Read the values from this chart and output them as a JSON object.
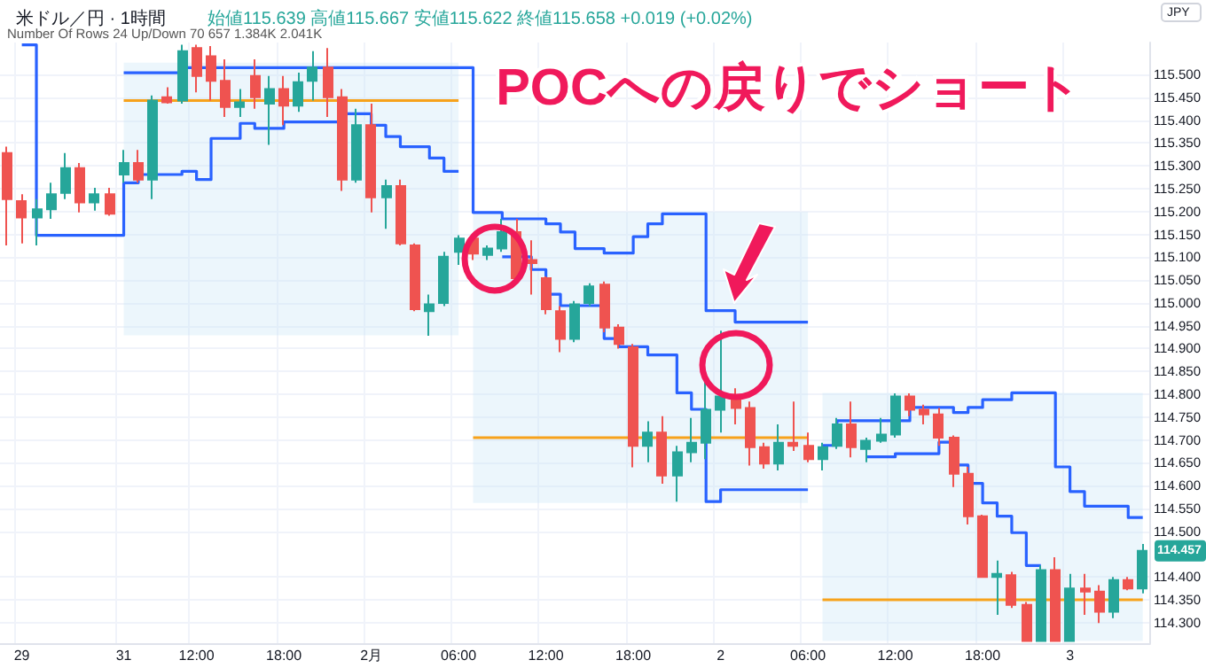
{
  "chart_data": {
    "type": "candlestick",
    "title": "米ドル／円 · 1時間",
    "subtitle": "始値115.639 高値115.667 安値115.622 終値115.658 +0.019 (+0.02%)",
    "annotations": [
      "POCへの戻りでショート",
      "Number Of Rows 24 Up/Down 70 657 1.384K 2.041K",
      "JPY",
      {
        "text": "114.457",
        "y": 114.457
      }
    ],
    "categories": [
      null,
      "29",
      null,
      null,
      null,
      null,
      null,
      null,
      "31",
      null,
      null,
      null,
      null,
      "12:00",
      null,
      null,
      null,
      null,
      null,
      "18:00",
      null,
      null,
      null,
      null,
      null,
      "2月",
      null,
      null,
      null,
      null,
      null,
      "06:00",
      null,
      null,
      null,
      null,
      null,
      "12:00",
      null,
      null,
      null,
      null,
      null,
      "18:00",
      null,
      null,
      null,
      null,
      null,
      "2",
      null,
      null,
      null,
      null,
      null,
      "06:00",
      null,
      null,
      null,
      null,
      null,
      "12:00",
      null,
      null,
      null,
      null,
      null,
      "18:00",
      null,
      null,
      null,
      null,
      null,
      "3",
      null,
      null,
      null,
      null,
      null
    ],
    "ohlc": [
      [
        115.328,
        115.342,
        115.126,
        115.227
      ],
      [
        115.223,
        115.238,
        115.13,
        115.187
      ],
      [
        115.187,
        115.227,
        115.126,
        115.205
      ],
      [
        115.205,
        115.263,
        115.184,
        115.238
      ],
      [
        115.241,
        115.328,
        115.227,
        115.295
      ],
      [
        115.295,
        115.306,
        115.198,
        115.22
      ],
      [
        115.22,
        115.252,
        115.202,
        115.238
      ],
      [
        115.238,
        115.252,
        115.191,
        115.195
      ],
      [
        115.281,
        115.335,
        115.263,
        115.306
      ],
      [
        115.306,
        115.335,
        115.263,
        115.27
      ],
      [
        115.27,
        115.454,
        115.227,
        115.443
      ],
      [
        115.45,
        115.472,
        115.436,
        115.439
      ],
      [
        115.443,
        115.565,
        115.436,
        115.551
      ],
      [
        115.558,
        115.565,
        115.461,
        115.497
      ],
      [
        115.54,
        115.562,
        115.443,
        115.486
      ],
      [
        115.486,
        115.533,
        115.407,
        115.429
      ],
      [
        115.429,
        115.468,
        115.407,
        115.439
      ],
      [
        115.497,
        115.533,
        115.425,
        115.45
      ],
      [
        115.436,
        115.497,
        115.346,
        115.468
      ],
      [
        115.468,
        115.497,
        115.389,
        115.432
      ],
      [
        115.432,
        115.504,
        115.418,
        115.483
      ],
      [
        115.486,
        115.551,
        115.443,
        115.515
      ],
      [
        115.515,
        115.558,
        115.407,
        115.45
      ],
      [
        115.45,
        115.468,
        115.245,
        115.27
      ],
      [
        115.27,
        115.425,
        115.263,
        115.389
      ],
      [
        115.389,
        115.436,
        115.198,
        115.231
      ],
      [
        115.231,
        115.27,
        115.162,
        115.256
      ],
      [
        115.256,
        115.27,
        115.126,
        115.13
      ],
      [
        115.126,
        115.13,
        114.982,
        114.986
      ],
      [
        114.982,
        115.018,
        114.928,
        114.997
      ],
      [
        115.0,
        115.112,
        114.993,
        115.101
      ],
      [
        115.112,
        115.148,
        115.083,
        115.141
      ],
      [
        115.141,
        115.144,
        115.094,
        115.108
      ],
      [
        115.105,
        115.126,
        115.094,
        115.119
      ],
      [
        115.119,
        115.184,
        115.112,
        115.155
      ],
      [
        115.155,
        115.184,
        115.047,
        115.054
      ],
      [
        115.094,
        115.137,
        115.018,
        115.087
      ],
      [
        115.054,
        115.058,
        114.975,
        114.986
      ],
      [
        114.982,
        114.993,
        114.892,
        114.921
      ],
      [
        114.921,
        115.004,
        114.914,
        114.997
      ],
      [
        115.0,
        115.043,
        114.993,
        115.036
      ],
      [
        115.04,
        115.047,
        114.936,
        114.946
      ],
      [
        114.946,
        114.953,
        114.9,
        114.91
      ],
      [
        114.903,
        114.91,
        114.64,
        114.687
      ],
      [
        114.687,
        114.741,
        114.651,
        114.716
      ],
      [
        114.716,
        114.752,
        114.604,
        114.622
      ],
      [
        114.622,
        114.687,
        114.565,
        114.673
      ],
      [
        114.673,
        114.748,
        114.651,
        114.694
      ],
      [
        114.694,
        114.831,
        114.658,
        114.766
      ],
      [
        114.766,
        114.939,
        114.716,
        114.795
      ],
      [
        114.795,
        114.813,
        114.734,
        114.77
      ],
      [
        114.77,
        114.784,
        114.644,
        114.684
      ],
      [
        114.684,
        114.694,
        114.637,
        114.648
      ],
      [
        114.648,
        114.734,
        114.633,
        114.694
      ],
      [
        114.694,
        114.784,
        114.676,
        114.687
      ],
      [
        114.687,
        114.716,
        114.651,
        114.658
      ],
      [
        114.658,
        114.694,
        114.633,
        114.684
      ],
      [
        114.687,
        114.748,
        114.68,
        114.734
      ],
      [
        114.734,
        114.784,
        114.662,
        114.684
      ],
      [
        114.68,
        114.705,
        114.651,
        114.698
      ],
      [
        114.698,
        114.748,
        114.694,
        114.712
      ],
      [
        114.712,
        114.802,
        114.705,
        114.795
      ],
      [
        114.795,
        114.802,
        114.752,
        114.766
      ],
      [
        114.766,
        114.777,
        114.734,
        114.756
      ],
      [
        114.756,
        114.77,
        114.687,
        114.705
      ],
      [
        114.705,
        114.71,
        114.597,
        114.626
      ],
      [
        114.626,
        114.641,
        114.515,
        114.533
      ],
      [
        114.533,
        114.536,
        114.398,
        114.4
      ],
      [
        114.4,
        114.436,
        114.317,
        114.407
      ],
      [
        114.404,
        114.411,
        114.332,
        114.339
      ],
      [
        114.339,
        114.345,
        114.26,
        114.26
      ],
      [
        114.26,
        114.425,
        114.26,
        114.415
      ],
      [
        114.415,
        114.443,
        114.26,
        114.26
      ],
      [
        114.26,
        114.407,
        114.26,
        114.375
      ],
      [
        114.375,
        114.407,
        114.317,
        114.368
      ],
      [
        114.368,
        114.382,
        114.299,
        114.324
      ],
      [
        114.324,
        114.4,
        114.31,
        114.393
      ],
      [
        114.393,
        114.4,
        114.371,
        114.375
      ],
      [
        114.375,
        114.472,
        114.364,
        114.457
      ]
    ],
    "colors": [
      "#ef5350",
      "#ef5350",
      "#26a69a",
      "#26a69a",
      "#26a69a",
      "#ef5350",
      "#26a69a",
      "#ef5350",
      "#26a69a",
      "#ef5350",
      "#26a69a",
      "#ef5350",
      "#26a69a",
      "#ef5350",
      "#ef5350",
      "#ef5350",
      "#26a69a",
      "#ef5350",
      "#26a69a",
      "#ef5350",
      "#26a69a",
      "#26a69a",
      "#ef5350",
      "#ef5350",
      "#26a69a",
      "#ef5350",
      "#26a69a",
      "#ef5350",
      "#ef5350",
      "#26a69a",
      "#26a69a",
      "#26a69a",
      "#ef5350",
      "#26a69a",
      "#26a69a",
      "#ef5350",
      "#ef5350",
      "#ef5350",
      "#ef5350",
      "#26a69a",
      "#26a69a",
      "#ef5350",
      "#ef5350",
      "#ef5350",
      "#26a69a",
      "#ef5350",
      "#26a69a",
      "#26a69a",
      "#26a69a",
      "#26a69a",
      "#ef5350",
      "#ef5350",
      "#ef5350",
      "#26a69a",
      "#ef5350",
      "#ef5350",
      "#26a69a",
      "#26a69a",
      "#ef5350",
      "#26a69a",
      "#26a69a",
      "#26a69a",
      "#ef5350",
      "#ef5350",
      "#ef5350",
      "#ef5350",
      "#ef5350",
      "#ef5350",
      "#26a69a",
      "#ef5350",
      "#ef5350",
      "#26a69a",
      "#ef5350",
      "#26a69a",
      "#ef5350",
      "#ef5350",
      "#26a69a",
      "#ef5350",
      "#26a69a"
    ],
    "series": [
      {
        "type": "line",
        "color": "#f7a21b",
        "values": [
          null,
          null,
          null,
          null,
          null,
          null,
          null,
          null,
          115.443,
          115.443,
          115.443,
          115.443,
          115.443,
          115.443,
          115.443,
          115.443,
          115.443,
          115.443,
          115.443,
          115.443,
          115.443,
          115.443,
          115.443,
          115.443,
          115.443,
          115.443,
          115.443,
          115.443,
          115.443,
          115.443,
          115.443,
          115.443,
          null,
          null,
          null,
          null,
          null,
          null,
          null,
          null,
          null,
          null,
          null,
          null,
          null,
          null,
          null,
          null,
          null,
          null,
          null,
          null,
          null,
          null,
          null,
          null,
          null,
          null,
          null,
          null,
          null,
          null,
          null,
          null,
          null,
          null,
          null,
          null,
          null,
          null,
          null,
          null,
          null,
          null,
          null,
          null,
          null,
          null,
          null
        ],
        "lower": [
          null,
          null,
          null,
          null,
          null,
          null,
          null,
          null,
          114.929,
          114.929,
          114.929,
          114.929,
          114.929,
          114.929,
          114.929,
          114.929,
          114.929,
          114.929,
          114.929,
          114.929,
          114.929,
          114.929,
          114.929,
          114.929,
          114.929,
          114.929,
          114.929,
          114.929,
          114.929,
          114.929,
          114.929,
          114.929,
          null,
          null,
          null,
          null,
          null,
          null,
          null,
          null,
          null,
          null,
          null,
          null,
          null,
          null,
          null,
          null,
          null,
          null,
          null,
          null,
          null,
          null,
          null,
          null,
          null,
          null,
          null,
          null,
          null,
          null,
          null,
          null,
          null,
          null,
          null,
          null,
          null,
          null,
          null,
          null,
          null,
          null,
          null,
          null,
          null,
          null,
          null
        ],
        "upper": [
          null,
          null,
          null,
          null,
          null,
          null,
          null,
          null,
          115.526,
          115.526,
          115.526,
          115.526,
          115.526,
          115.526,
          115.526,
          115.526,
          115.526,
          115.526,
          115.526,
          115.526,
          115.526,
          115.526,
          115.526,
          115.526,
          115.526,
          115.526,
          115.526,
          115.526,
          115.526,
          115.526,
          115.526,
          115.526,
          null,
          null,
          null,
          null,
          null,
          null,
          null,
          null,
          null,
          null,
          null,
          null,
          null,
          null,
          null,
          null,
          null,
          null,
          null,
          null,
          null,
          null,
          null,
          null,
          null,
          null,
          null,
          null,
          null,
          null,
          null,
          null,
          null,
          null,
          null,
          null,
          null,
          null,
          null,
          null,
          null,
          null,
          null,
          null,
          null,
          null,
          null
        ]
      },
      {
        "type": "line",
        "color": "#f7a21b",
        "values": [
          null,
          null,
          null,
          null,
          null,
          null,
          null,
          null,
          null,
          null,
          null,
          null,
          null,
          null,
          null,
          null,
          null,
          null,
          null,
          null,
          null,
          null,
          null,
          null,
          null,
          null,
          null,
          null,
          null,
          null,
          null,
          null,
          114.705,
          114.705,
          114.705,
          114.705,
          114.705,
          114.705,
          114.705,
          114.705,
          114.705,
          114.705,
          114.705,
          114.705,
          114.705,
          114.705,
          114.705,
          114.705,
          114.705,
          114.705,
          114.705,
          114.705,
          114.705,
          114.705,
          114.705,
          114.705,
          null,
          null,
          null,
          null,
          null,
          null,
          null,
          null,
          null,
          null,
          null,
          null,
          null,
          null,
          null,
          null,
          null,
          null,
          null,
          null,
          null,
          null,
          null
        ],
        "lower": [
          null,
          null,
          null,
          null,
          null,
          null,
          null,
          null,
          null,
          null,
          null,
          null,
          null,
          null,
          null,
          null,
          null,
          null,
          null,
          null,
          null,
          null,
          null,
          null,
          null,
          null,
          null,
          null,
          null,
          null,
          null,
          null,
          114.562,
          114.562,
          114.562,
          114.562,
          114.562,
          114.562,
          114.562,
          114.562,
          114.562,
          114.562,
          114.562,
          114.562,
          114.562,
          114.562,
          114.562,
          114.562,
          114.562,
          114.562,
          114.562,
          114.562,
          114.562,
          114.562,
          114.562,
          114.562,
          null,
          null,
          null,
          null,
          null,
          null,
          null,
          null,
          null,
          null,
          null,
          null,
          null,
          null,
          null,
          null,
          null,
          null,
          null,
          null,
          null,
          null,
          null
        ],
        "upper": [
          null,
          null,
          null,
          null,
          null,
          null,
          null,
          null,
          null,
          null,
          null,
          null,
          null,
          null,
          null,
          null,
          null,
          null,
          null,
          null,
          null,
          null,
          null,
          null,
          null,
          null,
          null,
          null,
          null,
          null,
          null,
          null,
          115.199,
          115.199,
          115.199,
          115.199,
          115.199,
          115.199,
          115.199,
          115.199,
          115.199,
          115.199,
          115.199,
          115.199,
          115.199,
          115.199,
          115.199,
          115.199,
          115.199,
          115.199,
          115.199,
          115.199,
          115.199,
          115.199,
          115.199,
          115.199,
          null,
          null,
          null,
          null,
          null,
          null,
          null,
          null,
          null,
          null,
          null,
          null,
          null,
          null,
          null,
          null,
          null,
          null,
          null,
          null,
          null,
          null,
          null
        ]
      },
      {
        "type": "line",
        "color": "#f7a21b",
        "values": [
          null,
          null,
          null,
          null,
          null,
          null,
          null,
          null,
          null,
          null,
          null,
          null,
          null,
          null,
          null,
          null,
          null,
          null,
          null,
          null,
          null,
          null,
          null,
          null,
          null,
          null,
          null,
          null,
          null,
          null,
          null,
          null,
          null,
          null,
          null,
          null,
          null,
          null,
          null,
          null,
          null,
          null,
          null,
          null,
          null,
          null,
          null,
          null,
          null,
          null,
          null,
          null,
          null,
          null,
          null,
          null,
          114.35,
          114.35,
          114.35,
          114.35,
          114.35,
          114.35,
          114.35,
          114.35,
          114.35,
          114.35,
          114.35,
          114.35,
          114.35,
          114.35,
          114.35,
          114.35,
          114.35,
          114.35,
          114.35,
          114.35,
          114.35,
          114.35,
          114.35
        ],
        "lower": [
          null,
          null,
          null,
          null,
          null,
          null,
          null,
          null,
          null,
          null,
          null,
          null,
          null,
          null,
          null,
          null,
          null,
          null,
          null,
          null,
          null,
          null,
          null,
          null,
          null,
          null,
          null,
          null,
          null,
          null,
          null,
          null,
          null,
          null,
          null,
          null,
          null,
          null,
          null,
          null,
          null,
          null,
          null,
          null,
          null,
          null,
          null,
          null,
          null,
          null,
          null,
          null,
          null,
          null,
          null,
          null,
          114.26,
          114.26,
          114.26,
          114.26,
          114.26,
          114.26,
          114.26,
          114.26,
          114.26,
          114.26,
          114.26,
          114.26,
          114.26,
          114.26,
          114.26,
          114.26,
          114.26,
          114.26,
          114.26,
          114.26,
          114.26,
          114.26,
          114.26
        ],
        "upper": [
          null,
          null,
          null,
          null,
          null,
          null,
          null,
          null,
          null,
          null,
          null,
          null,
          null,
          null,
          null,
          null,
          null,
          null,
          null,
          null,
          null,
          null,
          null,
          null,
          null,
          null,
          null,
          null,
          null,
          null,
          null,
          null,
          null,
          null,
          null,
          null,
          null,
          null,
          null,
          null,
          null,
          null,
          null,
          null,
          null,
          null,
          null,
          null,
          null,
          null,
          null,
          null,
          null,
          null,
          null,
          null,
          114.803,
          114.803,
          114.803,
          114.803,
          114.803,
          114.803,
          114.803,
          114.803,
          114.803,
          114.803,
          114.803,
          114.803,
          114.803,
          114.803,
          114.803,
          114.803,
          114.803,
          114.803,
          114.803,
          114.803,
          114.803,
          114.803,
          114.803
        ]
      },
      {
        "type": "step",
        "color": "#2962ff",
        "values": [
          null,
          115.565,
          115.148,
          115.148,
          115.148,
          115.148,
          115.148,
          115.148,
          115.263,
          115.281,
          115.281,
          115.281,
          115.288,
          115.27,
          115.36,
          115.36,
          115.393,
          115.382,
          115.382,
          115.396,
          115.396,
          115.396,
          115.396,
          115.414,
          115.414,
          115.389,
          115.364,
          115.342,
          115.342,
          115.317,
          115.288,
          115.288,
          null,
          null,
          null,
          null,
          null,
          null,
          null,
          null,
          null,
          null,
          null,
          null,
          null,
          null,
          null,
          null,
          null,
          null,
          null,
          null,
          null,
          null,
          null,
          null,
          null,
          null,
          null,
          null,
          null,
          null,
          null,
          null,
          null,
          null,
          null,
          null,
          null,
          null,
          null,
          null,
          null,
          null,
          null,
          null,
          null,
          null,
          null
        ]
      },
      {
        "type": "step",
        "color": "#2962ff",
        "values": [
          null,
          null,
          null,
          null,
          null,
          null,
          null,
          null,
          115.504,
          115.504,
          115.504,
          115.504,
          115.515,
          115.515,
          115.515,
          115.515,
          115.515,
          115.515,
          115.515,
          115.515,
          115.515,
          115.515,
          115.515,
          115.515,
          115.515,
          115.515,
          115.515,
          115.515,
          115.515,
          115.515,
          115.515,
          115.515,
          115.198,
          115.198,
          115.184,
          115.184,
          115.184,
          115.173,
          115.155,
          115.119,
          115.119,
          115.109,
          115.109,
          115.145,
          115.173,
          115.195,
          115.195,
          115.195,
          114.983,
          114.983,
          114.958,
          114.958,
          114.958,
          114.958,
          114.958,
          114.958,
          null,
          null,
          null,
          null,
          null,
          null,
          null,
          null,
          null,
          null,
          null,
          null,
          null,
          null,
          null,
          null,
          null,
          null,
          null,
          null,
          null,
          null,
          null
        ]
      },
      {
        "type": "step",
        "color": "#2962ff",
        "values": [
          null,
          null,
          null,
          null,
          null,
          null,
          null,
          null,
          null,
          null,
          null,
          null,
          null,
          null,
          null,
          null,
          null,
          null,
          null,
          null,
          null,
          null,
          null,
          null,
          null,
          null,
          null,
          null,
          null,
          null,
          null,
          null,
          null,
          null,
          115.101,
          115.101,
          115.073,
          115.019,
          114.994,
          114.994,
          114.994,
          114.922,
          114.904,
          114.904,
          114.886,
          114.886,
          114.803,
          114.767,
          114.565,
          114.591,
          114.591,
          114.591,
          114.591,
          114.591,
          114.591,
          114.591,
          null,
          null,
          null,
          null,
          null,
          null,
          null,
          null,
          null,
          null,
          null,
          null,
          null,
          null,
          null,
          null,
          null,
          null,
          null,
          null,
          null,
          null,
          null
        ]
      },
      {
        "type": "step",
        "color": "#2962ff",
        "values": [
          null,
          null,
          null,
          null,
          null,
          null,
          null,
          null,
          null,
          null,
          null,
          null,
          null,
          null,
          null,
          null,
          null,
          null,
          null,
          null,
          null,
          null,
          null,
          null,
          null,
          null,
          null,
          null,
          null,
          null,
          null,
          null,
          null,
          null,
          null,
          null,
          null,
          null,
          null,
          null,
          null,
          null,
          null,
          null,
          null,
          null,
          null,
          null,
          null,
          null,
          null,
          null,
          null,
          null,
          null,
          null,
          114.688,
          114.742,
          114.742,
          114.742,
          114.742,
          114.742,
          114.771,
          114.771,
          114.771,
          114.76,
          114.771,
          114.788,
          114.788,
          114.803,
          114.803,
          114.803,
          114.641,
          114.587,
          114.555,
          114.555,
          114.555,
          114.53,
          114.53
        ]
      },
      {
        "type": "step",
        "color": "#2962ff",
        "values": [
          null,
          null,
          null,
          null,
          null,
          null,
          null,
          null,
          null,
          null,
          null,
          null,
          null,
          null,
          null,
          null,
          null,
          null,
          null,
          null,
          null,
          null,
          null,
          null,
          null,
          null,
          null,
          null,
          null,
          null,
          null,
          null,
          null,
          null,
          null,
          null,
          null,
          null,
          null,
          null,
          null,
          null,
          null,
          null,
          null,
          null,
          null,
          null,
          null,
          null,
          null,
          null,
          null,
          null,
          null,
          null,
          null,
          null,
          null,
          114.663,
          114.663,
          114.67,
          114.67,
          114.67,
          114.695,
          114.645,
          114.605,
          114.562,
          114.533,
          114.497,
          114.425,
          114.425,
          null,
          null,
          null,
          null,
          null,
          null,
          null
        ]
      }
    ],
    "ylim": [
      114.255,
      115.57
    ],
    "yticks": [
      {
        "value": 114.3,
        "label": "114.300"
      },
      {
        "value": 114.35,
        "label": "114.350"
      },
      {
        "value": 114.4,
        "label": "114.400"
      },
      {
        "value": 114.5,
        "label": "114.500"
      },
      {
        "value": 114.55,
        "label": "114.550"
      },
      {
        "value": 114.6,
        "label": "114.600"
      },
      {
        "value": 114.65,
        "label": "114.650"
      },
      {
        "value": 114.7,
        "label": "114.700"
      },
      {
        "value": 114.75,
        "label": "114.750"
      },
      {
        "value": 114.8,
        "label": "114.800"
      },
      {
        "value": 114.85,
        "label": "114.850"
      },
      {
        "value": 114.9,
        "label": "114.900"
      },
      {
        "value": 114.95,
        "label": "114.950"
      },
      {
        "value": 115.0,
        "label": "115.000"
      },
      {
        "value": 115.05,
        "label": "115.050"
      },
      {
        "value": 115.1,
        "label": "115.100"
      },
      {
        "value": 115.15,
        "label": "115.150"
      },
      {
        "value": 115.2,
        "label": "115.200"
      },
      {
        "value": 115.25,
        "label": "115.250"
      },
      {
        "value": 115.3,
        "label": "115.300"
      },
      {
        "value": 115.35,
        "label": "115.350"
      },
      {
        "value": 115.4,
        "label": "115.400"
      },
      {
        "value": 115.45,
        "label": "115.450"
      },
      {
        "value": 115.5,
        "label": "115.500"
      }
    ],
    "grid": true
  }
}
